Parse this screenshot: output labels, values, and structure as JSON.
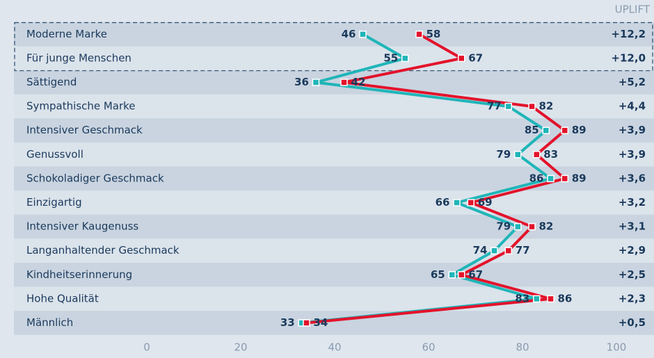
{
  "chart_data": {
    "type": "line",
    "column_title": "UPLIFT",
    "categories": [
      "Moderne Marke",
      "Für junge Menschen",
      "Sättigend",
      "Sympathische Marke",
      "Intensiver Geschmack",
      "Genussvoll",
      "Schokoladiger Geschmack",
      "Einzigartig",
      "Intensiver Kaugenuss",
      "Langanhaltender Geschmack",
      "Kindheitserinnerung",
      "Hohe Qualität",
      "Männlich"
    ],
    "uplift": [
      "+12,2",
      "+12,0",
      "+5,2",
      "+4,4",
      "+3,9",
      "+3,9",
      "+3,6",
      "+3,2",
      "+3,1",
      "+2,9",
      "+2,5",
      "+2,3",
      "+0,5"
    ],
    "series": [
      {
        "color": "#1fb5b8",
        "values": [
          46,
          55,
          36,
          77,
          85,
          79,
          86,
          66,
          79,
          74,
          65,
          83,
          33
        ]
      },
      {
        "color": "#e3132b",
        "values": [
          58,
          67,
          42,
          82,
          89,
          83,
          89,
          69,
          82,
          77,
          67,
          86,
          34
        ]
      }
    ],
    "xlim": [
      0,
      100
    ],
    "xticks": [
      0,
      20,
      40,
      60,
      80,
      100
    ]
  }
}
